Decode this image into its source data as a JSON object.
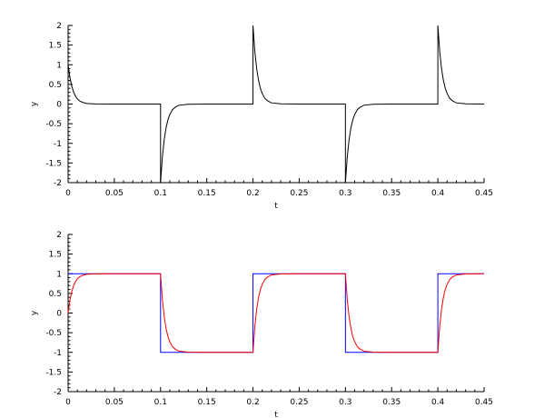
{
  "chart_data": [
    {
      "type": "line",
      "xlabel": "t",
      "ylabel": "y",
      "xlim": [
        0,
        0.45
      ],
      "ylim": [
        -2,
        2
      ],
      "xticks": [
        "0",
        "0.05",
        "0.1",
        "0.15",
        "0.2",
        "0.25",
        "0.3",
        "0.35",
        "0.4",
        "0.45"
      ],
      "yticks": [
        "-2",
        "-1.5",
        "-1",
        "-0.5",
        "0",
        "0.5",
        "1",
        "1.5",
        "2"
      ],
      "grid": false,
      "series": [
        {
          "color": "#000000",
          "x": [
            0,
            0.002,
            0.004,
            0.006,
            0.008,
            0.01,
            0.013,
            0.016,
            0.02,
            0.03,
            0.05,
            0.1,
            0.1,
            0.102,
            0.104,
            0.106,
            0.108,
            0.11,
            0.113,
            0.116,
            0.12,
            0.13,
            0.15,
            0.2,
            0.2,
            0.202,
            0.204,
            0.206,
            0.208,
            0.21,
            0.213,
            0.216,
            0.22,
            0.23,
            0.25,
            0.3,
            0.3,
            0.302,
            0.304,
            0.306,
            0.308,
            0.31,
            0.313,
            0.316,
            0.32,
            0.33,
            0.35,
            0.4,
            0.4,
            0.402,
            0.404,
            0.406,
            0.408,
            0.41,
            0.413,
            0.416,
            0.42,
            0.43,
            0.45
          ],
          "y": [
            1,
            0.67,
            0.45,
            0.3,
            0.2,
            0.13,
            0.07,
            0.04,
            0.015,
            0.003,
            0,
            0,
            -2,
            -1.34,
            -0.9,
            -0.6,
            -0.4,
            -0.27,
            -0.14,
            -0.08,
            -0.03,
            -0.005,
            0,
            0,
            2,
            1.34,
            0.9,
            0.6,
            0.4,
            0.27,
            0.14,
            0.08,
            0.03,
            0.005,
            0,
            0,
            -2,
            -1.34,
            -0.9,
            -0.6,
            -0.4,
            -0.27,
            -0.14,
            -0.08,
            -0.03,
            -0.005,
            0,
            0,
            2,
            1.34,
            0.9,
            0.6,
            0.4,
            0.27,
            0.14,
            0.08,
            0.03,
            0.005,
            0
          ]
        }
      ]
    },
    {
      "type": "line",
      "xlabel": "t",
      "ylabel": "y",
      "xlim": [
        0,
        0.45
      ],
      "ylim": [
        -2,
        2
      ],
      "xticks": [
        "0",
        "0.05",
        "0.1",
        "0.15",
        "0.2",
        "0.25",
        "0.3",
        "0.35",
        "0.4",
        "0.45"
      ],
      "yticks": [
        "-2",
        "-1.5",
        "-1",
        "-0.5",
        "0",
        "0.5",
        "1",
        "1.5",
        "2"
      ],
      "grid": false,
      "series": [
        {
          "color": "#0000ff",
          "x": [
            0,
            0.1,
            0.1,
            0.2,
            0.2,
            0.3,
            0.3,
            0.4,
            0.4,
            0.45
          ],
          "y": [
            1,
            1,
            -1,
            -1,
            1,
            1,
            -1,
            -1,
            1,
            1
          ]
        },
        {
          "color": "#ff0000",
          "x": [
            0,
            0.002,
            0.004,
            0.006,
            0.008,
            0.01,
            0.013,
            0.016,
            0.02,
            0.03,
            0.05,
            0.1,
            0.102,
            0.104,
            0.106,
            0.108,
            0.11,
            0.113,
            0.116,
            0.12,
            0.13,
            0.15,
            0.2,
            0.202,
            0.204,
            0.206,
            0.208,
            0.21,
            0.213,
            0.216,
            0.22,
            0.23,
            0.25,
            0.3,
            0.302,
            0.304,
            0.306,
            0.308,
            0.31,
            0.313,
            0.316,
            0.32,
            0.33,
            0.35,
            0.4,
            0.402,
            0.404,
            0.406,
            0.408,
            0.41,
            0.413,
            0.416,
            0.42,
            0.43,
            0.45
          ],
          "y": [
            0,
            0.33,
            0.55,
            0.7,
            0.8,
            0.87,
            0.93,
            0.96,
            0.985,
            0.997,
            1,
            1,
            0.34,
            -0.1,
            -0.4,
            -0.6,
            -0.73,
            -0.86,
            -0.92,
            -0.97,
            -0.995,
            -1,
            -1,
            -0.34,
            0.1,
            0.4,
            0.6,
            0.73,
            0.86,
            0.92,
            0.97,
            0.995,
            1,
            1,
            0.34,
            -0.1,
            -0.4,
            -0.6,
            -0.73,
            -0.86,
            -0.92,
            -0.97,
            -0.995,
            -1,
            -1,
            -0.34,
            0.1,
            0.4,
            0.6,
            0.73,
            0.86,
            0.92,
            0.97,
            0.995,
            1
          ]
        }
      ]
    }
  ]
}
